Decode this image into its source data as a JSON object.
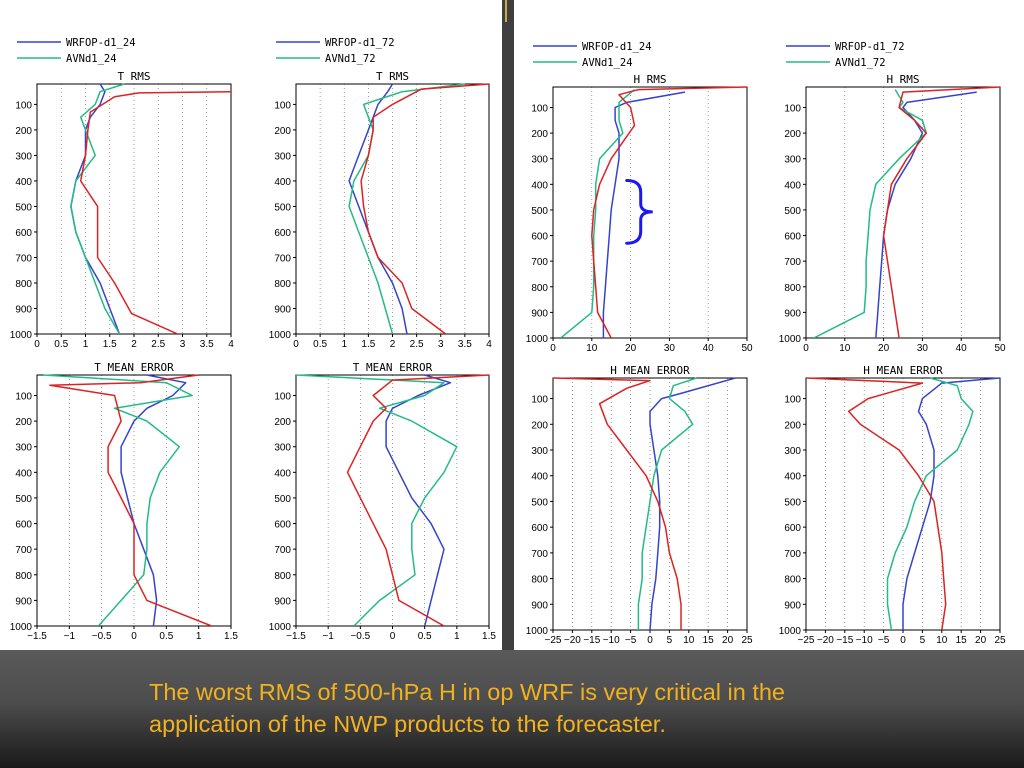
{
  "caption": {
    "line1": "The worst RMS of 500-hPa H in op WRF is very critical in the",
    "line2": "application of the NWP products to the forecaster."
  },
  "colors": {
    "blue": "#3344cc",
    "green": "#22bb88",
    "red": "#dd2222",
    "brace": "#1a1aee",
    "caption": "#f2b21f"
  },
  "chart_data": [
    {
      "type": "line",
      "title": "T RMS",
      "xlim": [
        0,
        4
      ],
      "xticks": [
        0,
        0.5,
        1,
        1.5,
        2,
        2.5,
        3,
        3.5,
        4
      ],
      "ylim": [
        1000,
        20
      ],
      "yticks": [
        100,
        200,
        300,
        400,
        500,
        600,
        700,
        800,
        900,
        1000
      ],
      "legend": [
        "WRFOP-d1_24",
        "AVNd1_24"
      ],
      "series": [
        {
          "name": "WRFOP-d1_24",
          "color": "blue",
          "x": [
            1.3,
            1.4,
            1.3,
            1.1,
            1.0,
            1.0,
            0.8,
            0.7,
            0.8,
            1.0,
            1.3,
            1.5,
            1.7
          ],
          "y": [
            20,
            50,
            100,
            150,
            200,
            300,
            400,
            500,
            600,
            700,
            800,
            900,
            1000
          ]
        },
        {
          "name": "AVNd1_24",
          "color": "green",
          "x": [
            1.8,
            1.3,
            1.2,
            0.9,
            1.0,
            1.2,
            0.8,
            0.7,
            0.8,
            1.0,
            1.2,
            1.4,
            1.7
          ],
          "y": [
            20,
            50,
            100,
            150,
            200,
            300,
            400,
            500,
            600,
            700,
            800,
            900,
            1000
          ]
        },
        {
          "name": "",
          "color": "red",
          "x": [
            4.0,
            2.1,
            1.6,
            1.1,
            1.05,
            1.0,
            0.9,
            1.25,
            1.25,
            1.25,
            1.6,
            1.95,
            2.9
          ],
          "y": [
            50,
            55,
            70,
            130,
            200,
            300,
            400,
            500,
            600,
            700,
            800,
            920,
            1000
          ]
        }
      ]
    },
    {
      "type": "line",
      "title": "T RMS",
      "xlim": [
        0,
        4
      ],
      "xticks": [
        0,
        0.5,
        1,
        1.5,
        2,
        2.5,
        3,
        3.5,
        4
      ],
      "ylim": [
        1000,
        20
      ],
      "yticks": [
        100,
        200,
        300,
        400,
        500,
        600,
        700,
        800,
        900,
        1000
      ],
      "legend": [
        "WRFOP-d1_72",
        "AVNd1_72"
      ],
      "series": [
        {
          "name": "WRFOP-d1_72",
          "color": "blue",
          "x": [
            2.0,
            1.9,
            1.7,
            1.6,
            1.5,
            1.3,
            1.1,
            1.3,
            1.5,
            1.7,
            2.0,
            2.2,
            2.3
          ],
          "y": [
            20,
            50,
            100,
            150,
            200,
            300,
            400,
            500,
            600,
            700,
            800,
            900,
            1000
          ]
        },
        {
          "name": "AVNd1_72",
          "color": "green",
          "x": [
            3.5,
            2.2,
            1.4,
            1.5,
            1.6,
            1.5,
            1.2,
            1.1,
            1.3,
            1.5,
            1.7,
            1.85,
            2.0
          ],
          "y": [
            20,
            50,
            100,
            150,
            200,
            300,
            400,
            500,
            600,
            700,
            800,
            900,
            1000
          ]
        },
        {
          "name": "",
          "color": "red",
          "x": [
            4.0,
            2.6,
            2.0,
            1.6,
            1.6,
            1.5,
            1.35,
            1.4,
            1.5,
            1.7,
            2.2,
            2.4,
            3.1
          ],
          "y": [
            20,
            40,
            100,
            150,
            200,
            300,
            400,
            500,
            600,
            700,
            800,
            900,
            1000
          ]
        }
      ]
    },
    {
      "type": "line",
      "title": "T MEAN ERROR",
      "xlim": [
        -1.5,
        1.5
      ],
      "xticks": [
        -1.5,
        -1,
        -0.5,
        0,
        0.5,
        1,
        1.5
      ],
      "ylim": [
        1000,
        20
      ],
      "yticks": [
        100,
        200,
        300,
        400,
        500,
        600,
        700,
        800,
        900,
        1000
      ],
      "series": [
        {
          "name": "",
          "color": "blue",
          "x": [
            0.2,
            0.8,
            0.6,
            0.2,
            0.0,
            -0.2,
            -0.2,
            -0.1,
            0.0,
            0.15,
            0.3,
            0.35,
            0.3
          ],
          "y": [
            20,
            50,
            100,
            150,
            200,
            300,
            400,
            500,
            600,
            700,
            800,
            900,
            1000
          ]
        },
        {
          "name": "",
          "color": "green",
          "x": [
            -1.4,
            0.5,
            0.9,
            -0.3,
            0.2,
            0.7,
            0.4,
            0.25,
            0.2,
            0.2,
            0.15,
            -0.2,
            -0.55
          ],
          "y": [
            20,
            50,
            100,
            150,
            200,
            300,
            400,
            500,
            600,
            700,
            800,
            900,
            1000
          ]
        },
        {
          "name": "",
          "color": "red",
          "x": [
            1.0,
            0.1,
            -1.3,
            -0.3,
            -0.2,
            -0.4,
            -0.4,
            -0.2,
            0.0,
            0.0,
            0.0,
            0.2,
            1.2
          ],
          "y": [
            20,
            50,
            60,
            100,
            200,
            300,
            400,
            500,
            600,
            700,
            800,
            900,
            1000
          ]
        }
      ]
    },
    {
      "type": "line",
      "title": "T MEAN ERROR",
      "xlim": [
        -1.5,
        1.5
      ],
      "xticks": [
        -1.5,
        -1,
        -0.5,
        0,
        0.5,
        1,
        1.5
      ],
      "ylim": [
        1000,
        20
      ],
      "yticks": [
        100,
        200,
        300,
        400,
        500,
        600,
        700,
        800,
        900,
        1000
      ],
      "series": [
        {
          "name": "",
          "color": "blue",
          "x": [
            0.5,
            0.9,
            0.4,
            0.0,
            -0.1,
            -0.1,
            0.1,
            0.3,
            0.6,
            0.8,
            0.7,
            0.6,
            0.5
          ],
          "y": [
            20,
            50,
            100,
            150,
            200,
            300,
            400,
            500,
            600,
            700,
            800,
            900,
            1000
          ]
        },
        {
          "name": "",
          "color": "green",
          "x": [
            -1.5,
            0.8,
            0.5,
            -0.2,
            0.3,
            1.0,
            0.8,
            0.5,
            0.3,
            0.3,
            0.35,
            -0.2,
            -0.6
          ],
          "y": [
            20,
            50,
            100,
            150,
            200,
            300,
            400,
            500,
            600,
            700,
            800,
            900,
            1000
          ]
        },
        {
          "name": "",
          "color": "red",
          "x": [
            1.5,
            0.0,
            -0.3,
            -0.1,
            -0.3,
            -0.5,
            -0.7,
            -0.5,
            -0.3,
            -0.1,
            0.0,
            0.1,
            0.8
          ],
          "y": [
            20,
            40,
            100,
            150,
            200,
            300,
            400,
            500,
            600,
            700,
            800,
            900,
            1000
          ]
        }
      ]
    },
    {
      "type": "line",
      "title": "H RMS",
      "xlim": [
        0,
        50
      ],
      "xticks": [
        0,
        10,
        20,
        30,
        40,
        50
      ],
      "ylim": [
        1000,
        20
      ],
      "yticks": [
        100,
        200,
        300,
        400,
        500,
        600,
        700,
        800,
        900,
        1000
      ],
      "legend": [
        "WRFOP-d1_24",
        "AVNd1_24"
      ],
      "series": [
        {
          "name": "WRFOP-d1_24",
          "color": "blue",
          "x": [
            34,
            19,
            16,
            16,
            17,
            17,
            16,
            15,
            14.5,
            14,
            13.5,
            13,
            13
          ],
          "y": [
            40,
            80,
            100,
            150,
            200,
            300,
            400,
            500,
            600,
            700,
            800,
            900,
            1000
          ]
        },
        {
          "name": "AVNd1_24",
          "color": "green",
          "x": [
            21,
            17,
            17,
            17,
            18,
            12,
            11,
            11,
            10.5,
            10.5,
            10.5,
            10,
            2
          ],
          "y": [
            30,
            80,
            100,
            150,
            200,
            300,
            400,
            500,
            600,
            700,
            800,
            900,
            1000
          ]
        },
        {
          "name": "",
          "color": "red",
          "x": [
            50,
            22,
            17,
            20,
            21,
            15,
            12,
            10.5,
            10,
            10.5,
            11,
            11.5,
            15
          ],
          "y": [
            20,
            30,
            50,
            100,
            170,
            300,
            400,
            500,
            600,
            700,
            800,
            900,
            1000
          ]
        }
      ]
    },
    {
      "type": "line",
      "title": "H RMS",
      "xlim": [
        0,
        50
      ],
      "xticks": [
        0,
        10,
        20,
        30,
        40,
        50
      ],
      "ylim": [
        1000,
        20
      ],
      "yticks": [
        100,
        200,
        300,
        400,
        500,
        600,
        700,
        800,
        900,
        1000
      ],
      "legend": [
        "WRFOP-d1_72",
        "AVNd1_72"
      ],
      "series": [
        {
          "name": "WRFOP-d1_72",
          "color": "blue",
          "x": [
            44,
            26,
            25,
            28,
            30,
            27,
            23,
            21,
            20,
            19.5,
            19,
            18.5,
            18
          ],
          "y": [
            40,
            80,
            100,
            150,
            200,
            300,
            400,
            500,
            600,
            700,
            800,
            900,
            1000
          ]
        },
        {
          "name": "AVNd1_72",
          "color": "green",
          "x": [
            23,
            25,
            24,
            30,
            31,
            24,
            18,
            16.5,
            16,
            15.5,
            15.5,
            15,
            2
          ],
          "y": [
            30,
            80,
            100,
            150,
            200,
            300,
            400,
            500,
            600,
            700,
            800,
            900,
            1000
          ]
        },
        {
          "name": "",
          "color": "red",
          "x": [
            50,
            25,
            24,
            28,
            31,
            26,
            22,
            21,
            20,
            21,
            22,
            23,
            24
          ],
          "y": [
            20,
            40,
            100,
            150,
            200,
            300,
            400,
            500,
            600,
            700,
            800,
            900,
            1000
          ]
        }
      ]
    },
    {
      "type": "line",
      "title": "H MEAN ERROR",
      "xlim": [
        -25,
        25
      ],
      "xticks": [
        -25,
        -20,
        -15,
        -10,
        -5,
        0,
        5,
        10,
        15,
        20,
        25
      ],
      "ylim": [
        1000,
        20
      ],
      "yticks": [
        100,
        200,
        300,
        400,
        500,
        600,
        700,
        800,
        900,
        1000
      ],
      "series": [
        {
          "name": "",
          "color": "blue",
          "x": [
            22,
            8,
            3,
            0,
            0,
            1,
            2,
            2.5,
            2.5,
            2,
            1.5,
            0.5,
            0
          ],
          "y": [
            20,
            80,
            100,
            150,
            200,
            300,
            400,
            500,
            600,
            700,
            800,
            900,
            1000
          ]
        },
        {
          "name": "",
          "color": "green",
          "x": [
            12,
            6,
            5,
            9,
            11,
            3,
            1,
            0,
            -1,
            -2,
            -2,
            -3,
            -3
          ],
          "y": [
            20,
            50,
            100,
            150,
            200,
            300,
            400,
            500,
            600,
            700,
            800,
            900,
            1000
          ]
        },
        {
          "name": "",
          "color": "red",
          "x": [
            -25,
            0,
            -6,
            -13,
            -11,
            -6,
            -1,
            2,
            4,
            5,
            7,
            8,
            8
          ],
          "y": [
            20,
            30,
            60,
            120,
            200,
            300,
            400,
            500,
            600,
            700,
            800,
            900,
            1000
          ]
        }
      ]
    },
    {
      "type": "line",
      "title": "H MEAN ERROR",
      "xlim": [
        -25,
        25
      ],
      "xticks": [
        -25,
        -20,
        -15,
        -10,
        -5,
        0,
        5,
        10,
        15,
        20,
        25
      ],
      "ylim": [
        1000,
        20
      ],
      "yticks": [
        100,
        200,
        300,
        400,
        500,
        600,
        700,
        800,
        900,
        1000
      ],
      "series": [
        {
          "name": "",
          "color": "blue",
          "x": [
            25,
            10,
            5,
            4,
            6,
            8,
            8,
            7,
            5,
            3,
            1,
            0,
            0
          ],
          "y": [
            20,
            40,
            100,
            150,
            200,
            300,
            400,
            500,
            600,
            700,
            800,
            900,
            1000
          ]
        },
        {
          "name": "",
          "color": "green",
          "x": [
            7,
            14,
            15,
            18,
            17,
            14,
            6,
            3,
            1,
            -2,
            -4,
            -4,
            -3
          ],
          "y": [
            20,
            50,
            100,
            150,
            200,
            300,
            400,
            500,
            600,
            700,
            800,
            900,
            1000
          ]
        },
        {
          "name": "",
          "color": "red",
          "x": [
            -25,
            5,
            -9,
            -14,
            -11,
            -1,
            4,
            8,
            9,
            10,
            10.5,
            11,
            10
          ],
          "y": [
            20,
            40,
            100,
            150,
            200,
            300,
            400,
            500,
            600,
            700,
            800,
            900,
            1000
          ]
        }
      ]
    }
  ]
}
